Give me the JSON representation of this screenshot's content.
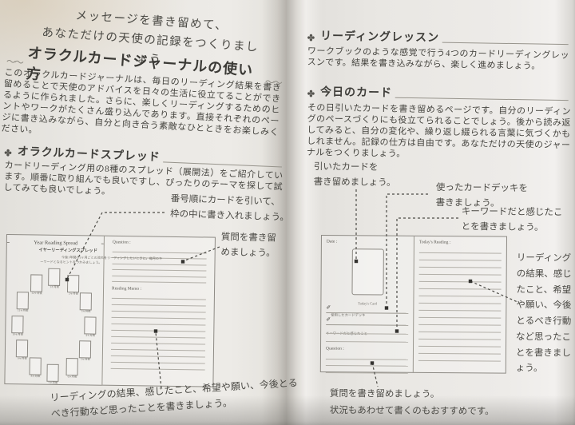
{
  "page_left": {
    "intro": {
      "line1": "メッセージを書き留めて、",
      "line2": "あなただけの天使の記録をつくりましょう"
    },
    "title": "オラクルカードジャーナルの使い方",
    "flourish": "〜〜",
    "section_marker": "✤",
    "lead_paragraph": "このオラクルカードジャーナルは、毎日のリーディング結果を書き留めることで天使のアドバイスを日々の生活に役立てることができるように作られました。さらに、楽しくリーディングするためのヒントやワークがたくさん盛り込んであります。直接それぞれのページに書き込みながら、自分と向き合う素敵なひとときをお楽しみください。",
    "spread_section": {
      "title": "オラクルカードスプレッド",
      "body": "カードリーディング用の8種のスプレッド（展開法）をご紹介しています。順番に取り組んでも良いですし、ぴったりのテーマを探して試してみても良いでしょう。"
    },
    "annotations": {
      "draw_cards": "番号順にカードを引いて、\n枠の中に書き入れましょう。",
      "question": "質問を書き留\nめましょう。",
      "result": "リーディングの結果、感じたこと、希望や願い、今後とるべき行動など思ったことを書きましょう。"
    },
    "diagram": {
      "title_en": "Year Reading Spread",
      "title_ja": "イヤーリーディングスプレッド",
      "desc_line1": "今後1年間の1ヶ月ごとの流れをリーディングしたいときに。毎月のキ",
      "desc_line2": "ーワードとなるヒントをつかみましょう。",
      "question_label": "Question :",
      "memo_label": "Reading Memo :",
      "card_labels": [
        "1ヶ月後",
        "2ヶ月後",
        "3ヶ月後",
        "4ヶ月後",
        "5ヶ月後",
        "6ヶ月後",
        "7ヶ月後",
        "8ヶ月後",
        "9ヶ月後",
        "10ヶ月後",
        "11ヶ月後",
        "12ヶ月後"
      ]
    }
  },
  "page_right": {
    "section_marker": "✤",
    "lesson_section": {
      "title": "リーディングレッスン",
      "body": "ワークブックのような感覚で行う4つのカードリーディングレッスンです。結果を書き込みながら、楽しく進めましょう。"
    },
    "today_section": {
      "title": "今日のカード",
      "body": "その日引いたカードを書き留めるページです。自分のリーディングのペースづくりにも役立てられることでしょう。後から読み返してみると、自分の変化や、繰り返し綴られる言葉に気づくかもしれません。記録の仕方は自由です。あなただけの天使のジャーナルをつくりましょう。"
    },
    "annotations": {
      "drawn_card": "引いたカードを\n書き留めましょう。",
      "deck": "使ったカードデッキを\n書きましょう。",
      "keyword": "キーワードだと感じたこ\nとを書きましょう。",
      "reading": "リーディングの結果、感じたこと、希望や願い、今後とるべき行動など思ったことを書きましょう。",
      "question": "質問を書き留めましょう。\n状況もあわせて書くのもおすすめです。"
    },
    "diagram": {
      "date_label": "Date :",
      "card_label": "Today's Card",
      "pen_icon": "✐",
      "field1": "使用したカードデッキ",
      "field2": "キーワードだと感じたこと",
      "question_label": "Question :",
      "reading_label": "Today's Reading :"
    }
  },
  "colors": {
    "paper": "#edebe7",
    "ink": "#45443f",
    "rule_line": "#b2afa8",
    "border": "#8d8a84"
  }
}
